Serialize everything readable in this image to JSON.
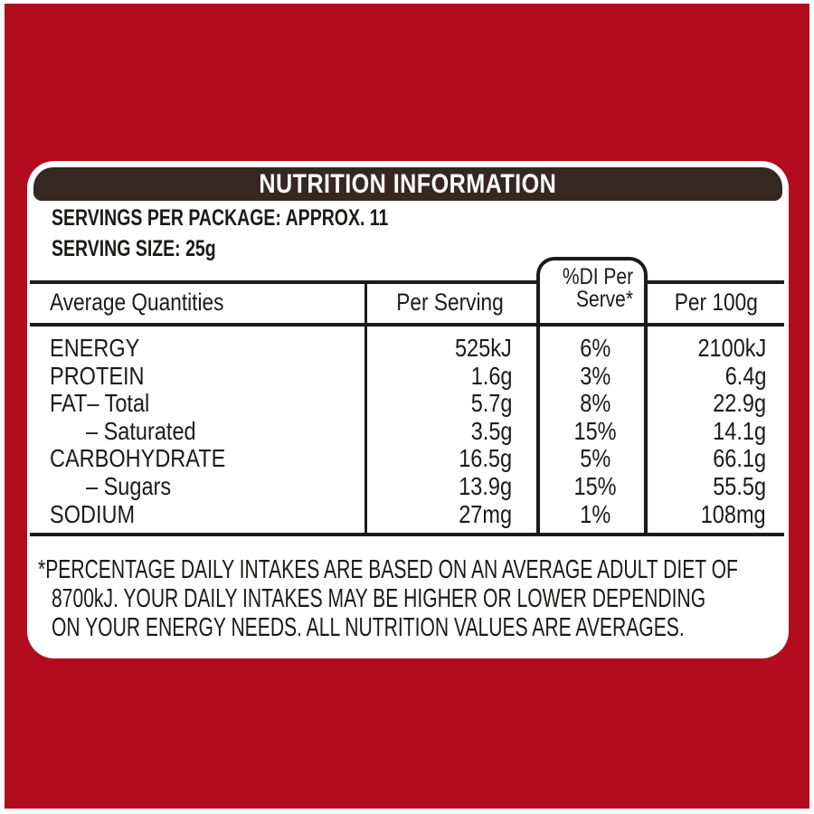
{
  "colors": {
    "background_red": "#b30c1e",
    "title_bar_brown": "#362722",
    "panel_white": "#ffffff",
    "text_black": "#1d1a19",
    "title_text_white": "#ffffff"
  },
  "title": "NUTRITION INFORMATION",
  "servings_per_package": "SERVINGS PER PACKAGE: APPROX. 11",
  "serving_size": "SERVING SIZE: 25g",
  "table": {
    "columns": [
      "Average Quantities",
      "Per Serving",
      "%DI Per Serve*",
      "Per 100g"
    ],
    "di_header_line1": "%DI Per",
    "di_header_line2": "Serve*",
    "rows": [
      {
        "label": "ENERGY",
        "per_serving": "525kJ",
        "di_per_serve": "6%",
        "per_100g": "2100kJ"
      },
      {
        "label": "PROTEIN",
        "per_serving": "1.6g",
        "di_per_serve": "3%",
        "per_100g": "6.4g"
      },
      {
        "label": "FAT– Total",
        "per_serving": "5.7g",
        "di_per_serve": "8%",
        "per_100g": "22.9g"
      },
      {
        "label": "– Saturated",
        "per_serving": "3.5g",
        "di_per_serve": "15%",
        "per_100g": "14.1g"
      },
      {
        "label": "CARBOHYDRATE",
        "per_serving": "16.5g",
        "di_per_serve": "5%",
        "per_100g": "66.1g"
      },
      {
        "label": "– Sugars",
        "per_serving": "13.9g",
        "di_per_serve": "15%",
        "per_100g": "55.5g"
      },
      {
        "label": "SODIUM",
        "per_serving": "27mg",
        "di_per_serve": "1%",
        "per_100g": "108mg"
      }
    ]
  },
  "footnote": {
    "lines": [
      "*PERCENTAGE DAILY INTAKES ARE BASED ON AN AVERAGE ADULT DIET OF",
      "8700kJ. YOUR DAILY INTAKES MAY BE HIGHER OR LOWER DEPENDING",
      "ON YOUR ENERGY NEEDS. ALL NUTRITION VALUES ARE AVERAGES."
    ]
  }
}
